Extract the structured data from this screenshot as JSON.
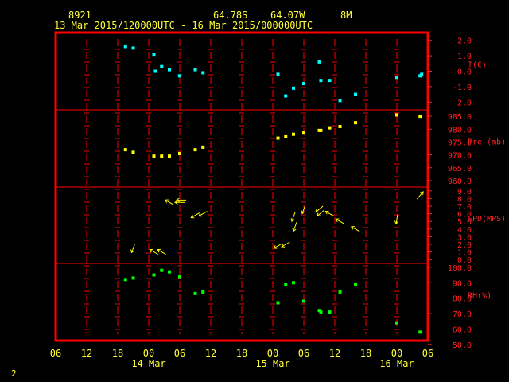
{
  "header": {
    "station_id": "8921",
    "latitude": "64.78S",
    "longitude": "64.07W",
    "height": "8M",
    "time_range": "13 Mar 2015/120000UTC - 16 Mar 2015/000000UTC"
  },
  "footer_number": "2",
  "colors": {
    "frame": "#ff0000",
    "grid": "#ff0000",
    "axis_text": "#ffff33",
    "right_axis_text": "#ff2020",
    "temperature": "#00ffff",
    "pressure": "#ffff00",
    "wind": "#ffff00",
    "humidity": "#00ff00"
  },
  "chart_data": {
    "type": "scatter",
    "x_axis": {
      "unit": "hours since 13 Mar 2015 06 UTC",
      "range": [
        0,
        72
      ],
      "tick_labels": [
        "06",
        "12",
        "18",
        "00",
        "06",
        "12",
        "18",
        "00",
        "06",
        "12",
        "18",
        "00",
        "06"
      ],
      "date_labels": [
        {
          "label": "14 Mar",
          "hour": 18
        },
        {
          "label": "15 Mar",
          "hour": 42
        },
        {
          "label": "16 Mar",
          "hour": 66
        }
      ]
    },
    "panels": [
      {
        "label": "T(C)",
        "color": "#00ffff",
        "ylim": [
          -2.5,
          2.5
        ],
        "ticks": [
          "2.0",
          "1.0",
          "0.0",
          "-1.0",
          "-2.0"
        ],
        "tick_values": [
          2,
          1,
          0,
          -1,
          -2
        ],
        "series": [
          {
            "x": [
              13.5,
              15,
              19,
              19.3,
              20.5,
              22,
              24,
              27,
              28.5,
              43,
              44.5,
              46,
              48,
              51,
              51.3,
              53,
              55,
              58,
              66,
              70.5,
              70.8
            ],
            "y": [
              1.6,
              1.5,
              1.1,
              0.0,
              0.3,
              0.1,
              -0.3,
              0.1,
              -0.1,
              -0.2,
              -1.6,
              -1.1,
              -0.8,
              0.6,
              -0.6,
              -0.6,
              -1.9,
              -1.5,
              -0.4,
              -0.3,
              -0.2
            ]
          }
        ]
      },
      {
        "label": "Pre (mb)",
        "color": "#ffff00",
        "ylim": [
          957.5,
          987.5
        ],
        "ticks": [
          "985.0",
          "980.0",
          "975.0",
          "970.0",
          "965.0",
          "960.0"
        ],
        "tick_values": [
          985,
          980,
          975,
          970,
          965,
          960
        ],
        "series": [
          {
            "x": [
              13.5,
              15,
              19,
              20.5,
              22,
              24,
              27,
              28.5,
              43,
              44.5,
              46,
              48,
              51,
              51.3,
              53,
              55,
              58,
              66,
              70.5
            ],
            "y": [
              972,
              971,
              969.5,
              969.5,
              969.5,
              970.5,
              972,
              973,
              976.5,
              977,
              978,
              978.5,
              979.5,
              979.5,
              980.5,
              981,
              982.5,
              985.5,
              985
            ]
          }
        ]
      },
      {
        "label": "SPD(MPS)",
        "color": "#ffff00",
        "ylim": [
          -0.5,
          9.5
        ],
        "ticks": [
          "9.0",
          "8.0",
          "7.0",
          "6.0",
          "5.0",
          "4.0",
          "3.0",
          "2.0",
          "1.0",
          "0.0"
        ],
        "tick_values": [
          9,
          8,
          7,
          6,
          5,
          4,
          3,
          2,
          1,
          0
        ],
        "series": [
          {
            "x": [
              15,
              19,
              20.5,
              22,
              24,
              24.3,
              27,
              28.5,
              43,
              44.5,
              46,
              46.3,
              48,
              51,
              51.3,
              53,
              55,
              58,
              66,
              70.5
            ],
            "speed": [
              1.5,
              1.0,
              1.0,
              7.5,
              7.5,
              7.8,
              5.8,
              6.0,
              1.8,
              2.0,
              5.6,
              4.3,
              6.6,
              6.6,
              6.1,
              6.0,
              5.0,
              4.0,
              5.3,
              8.4
            ],
            "dir_deg": [
              200,
              300,
              300,
              300,
              270,
              270,
              240,
              240,
              240,
              240,
              200,
              200,
              200,
              230,
              230,
              300,
              300,
              300,
              190,
              40
            ]
          }
        ]
      },
      {
        "label": "RH(%)",
        "color": "#00ff00",
        "ylim": [
          52.5,
          102.5
        ],
        "ticks": [
          "100.0",
          "90.0",
          "80.0",
          "70.0",
          "60.0",
          "50.0"
        ],
        "tick_values": [
          100,
          90,
          80,
          70,
          60,
          50
        ],
        "series": [
          {
            "x": [
              13.5,
              15,
              19,
              20.5,
              22,
              24,
              27,
              28.5,
              43,
              44.5,
              46,
              48,
              51,
              51.3,
              53,
              55,
              58,
              66,
              70.5
            ],
            "y": [
              92,
              93,
              95,
              98,
              97,
              94,
              83,
              84,
              77,
              89,
              90,
              78,
              72,
              71,
              71,
              84,
              89,
              64,
              58
            ]
          }
        ]
      }
    ]
  }
}
